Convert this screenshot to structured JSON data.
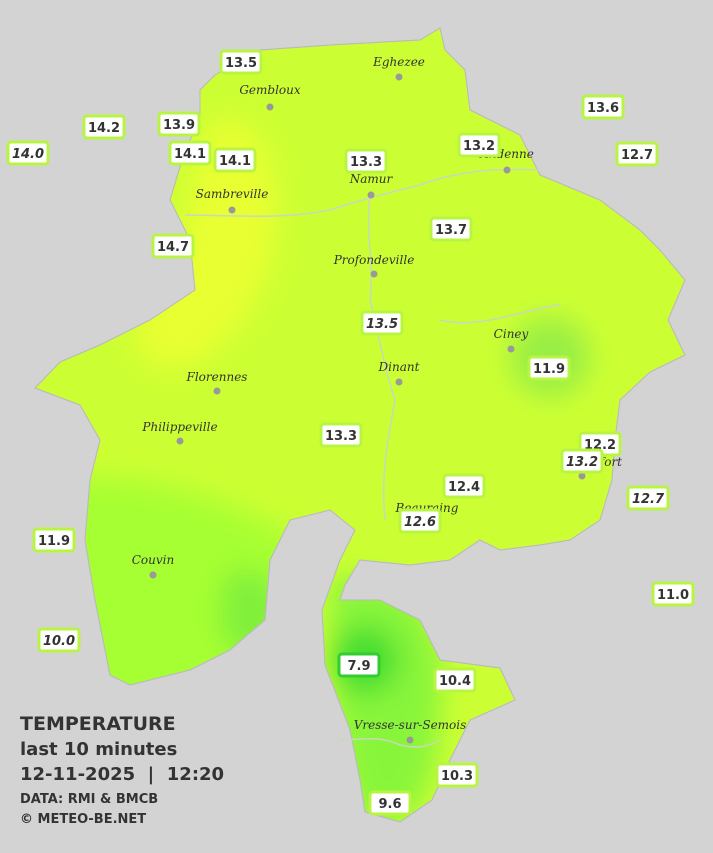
{
  "legend": {
    "title": "TEMPERATURE",
    "subtitle": "last 10 minutes",
    "datetime": "12-11-2025  |  12:20",
    "source": "DATA: RMI & BMCB",
    "copyright": "© METEO-BE.NET"
  },
  "cities": [
    "Eghezee",
    "Gembloux",
    "Andenne",
    "Namur",
    "Sambreville",
    "Profondeville",
    "Ciney",
    "Dinant",
    "Florennes",
    "Philippeville",
    "Rochefort",
    "Beauraing",
    "Couvin",
    "Vresse-sur-Semois"
  ],
  "stations": [
    "13.5",
    "14.2",
    "13.9",
    "14.0",
    "14.1",
    "14.1",
    "13.3",
    "13.2",
    "13.6",
    "12.7",
    "14.7",
    "13.7",
    "13.5",
    "11.9",
    "13.3",
    "12.2",
    "13.2",
    "12.4",
    "12.7",
    "12.6",
    "11.9",
    "11.0",
    "10.0",
    "7.9",
    "10.4",
    "10.3",
    "9.6"
  ]
}
